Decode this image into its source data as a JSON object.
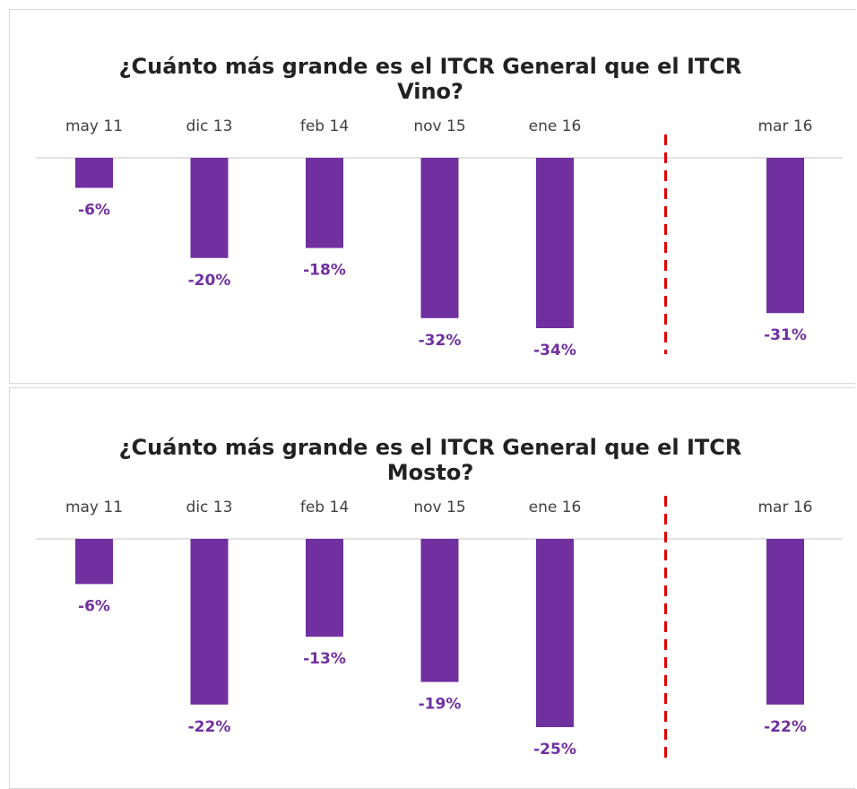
{
  "chart_data": [
    {
      "type": "bar",
      "title": "¿Cuánto más grande es el ITCR General que el ITCR Vino?",
      "categories": [
        "may 11",
        "dic 13",
        "feb 14",
        "nov 15",
        "ene 16",
        null,
        "mar 16"
      ],
      "values": [
        -6,
        -20,
        -18,
        -32,
        -34,
        null,
        -31
      ],
      "value_labels": [
        "-6%",
        "-20%",
        "-18%",
        "-32%",
        "-34%",
        null,
        "-31%"
      ],
      "color": "#7030a0",
      "ylim": [
        -34,
        0
      ]
    },
    {
      "type": "bar",
      "title": "¿Cuánto más grande es el ITCR General que el ITCR Mosto?",
      "categories": [
        "may 11",
        "dic 13",
        "feb 14",
        "nov 15",
        "ene 16",
        null,
        "mar 16"
      ],
      "values": [
        -6,
        -22,
        -13,
        -19,
        -25,
        null,
        -22
      ],
      "value_labels": [
        "-6%",
        "-22%",
        "-13%",
        "-19%",
        "-25%",
        null,
        "-22%"
      ],
      "color": "#7030a0",
      "ylim": [
        -25,
        0
      ]
    }
  ]
}
